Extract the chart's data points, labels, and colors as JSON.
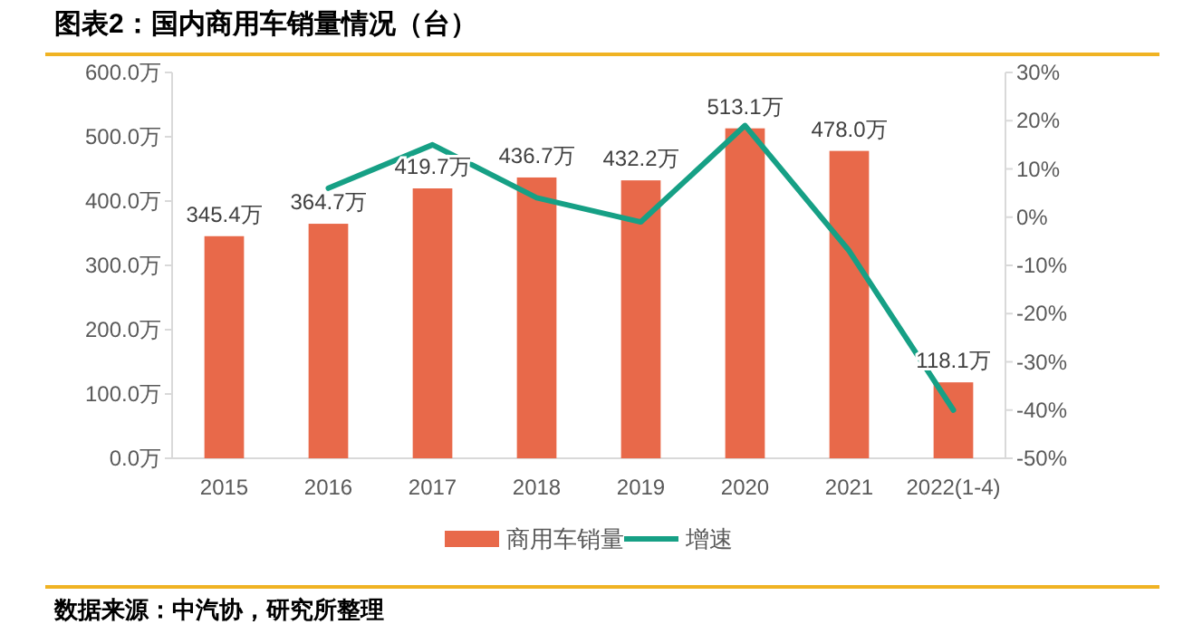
{
  "chart_data": {
    "type": "bar",
    "title": "图表2：国内商用车销量情况（台）",
    "categories": [
      "2015",
      "2016",
      "2017",
      "2018",
      "2019",
      "2020",
      "2021",
      "2022(1-4)"
    ],
    "series": [
      {
        "name": "商用车销量",
        "color": "#e8694a",
        "values": [
          345.4,
          364.7,
          419.7,
          436.7,
          432.2,
          513.1,
          478.0,
          118.1
        ],
        "value_labels": [
          "345.4万",
          "364.7万",
          "419.7万",
          "436.7万",
          "432.2万",
          "513.1万",
          "478.0万",
          "118.1万"
        ]
      },
      {
        "name": "增速",
        "type": "line",
        "axis": "y2",
        "color": "#16a085",
        "values": [
          null,
          6,
          15,
          4,
          -1,
          19,
          -7,
          -40
        ]
      }
    ],
    "ylim": [
      0,
      600
    ],
    "yticks": [
      {
        "value": 0,
        "label": "0.0万"
      },
      {
        "value": 100,
        "label": "100.0万"
      },
      {
        "value": 200,
        "label": "200.0万"
      },
      {
        "value": 300,
        "label": "300.0万"
      },
      {
        "value": 400,
        "label": "400.0万"
      },
      {
        "value": 500,
        "label": "500.0万"
      },
      {
        "value": 600,
        "label": "600.0万"
      }
    ],
    "y2lim": [
      -50,
      30
    ],
    "y2ticks": [
      {
        "value": 30,
        "label": "30%"
      },
      {
        "value": 20,
        "label": "20%"
      },
      {
        "value": 10,
        "label": "10%"
      },
      {
        "value": 0,
        "label": "0%"
      },
      {
        "value": -10,
        "label": "-10%"
      },
      {
        "value": -20,
        "label": "-20%"
      },
      {
        "value": -30,
        "label": "-30%"
      },
      {
        "value": -40,
        "label": "-40%"
      },
      {
        "value": -50,
        "label": "-50%"
      }
    ],
    "legend": "bottom",
    "grid": false,
    "annotations": [
      "数据来源：中汽协，研究所整理"
    ]
  }
}
